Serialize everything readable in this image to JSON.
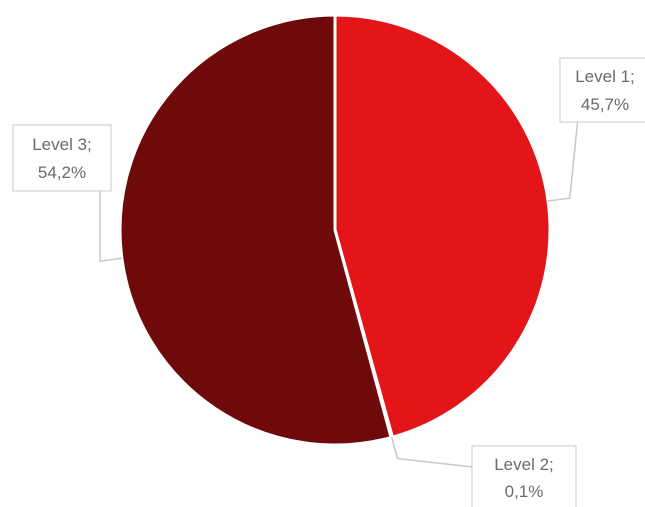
{
  "chart_data": {
    "type": "pie",
    "title": "",
    "slices": [
      {
        "label": "Level 1",
        "value": 45.7,
        "display": "45,7%",
        "color": "#e41519"
      },
      {
        "label": "Level 2",
        "value": 0.1,
        "display": "0,1%",
        "color": "#e41519"
      },
      {
        "label": "Level 3",
        "value": 54.2,
        "display": "54,2%",
        "color": "#6e0a0a"
      }
    ],
    "start": "12 o'clock",
    "direction": "clockwise",
    "data_labels": {
      "format": "{label}; {percent}",
      "callout_boxes": true
    }
  }
}
